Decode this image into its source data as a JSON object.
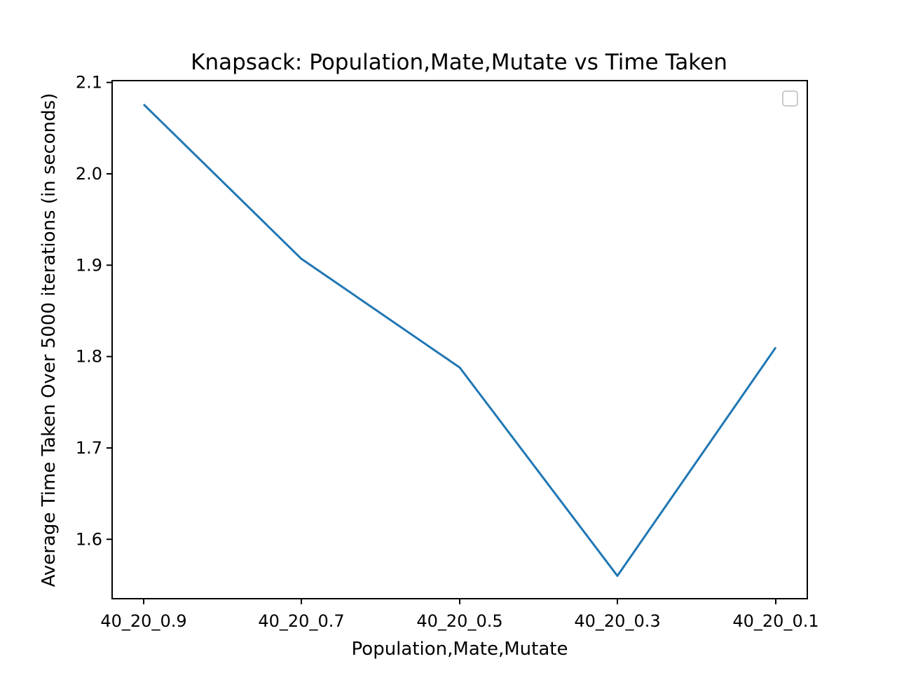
{
  "chart_data": {
    "type": "line",
    "title": "Knapsack: Population,Mate,Mutate vs Time Taken",
    "xlabel": "Population,Mate,Mutate",
    "ylabel": "Average Time Taken Over 5000 iterations (in seconds)",
    "categories": [
      "40_20_0.9",
      "40_20_0.7",
      "40_20_0.5",
      "40_20_0.3",
      "40_20_0.1"
    ],
    "series": [
      {
        "values": [
          2.076,
          1.907,
          1.788,
          1.56,
          1.81
        ],
        "color": "#1f77b4"
      }
    ],
    "ylim": [
      1.535,
      2.102
    ],
    "yticks": [
      "1.6",
      "1.7",
      "1.8",
      "1.9",
      "2.0",
      "2.1"
    ],
    "ytick_values": [
      1.6,
      1.7,
      1.8,
      1.9,
      2.0,
      2.1
    ],
    "grid": false,
    "legend": {
      "placement": "upper-right",
      "entries": []
    }
  }
}
